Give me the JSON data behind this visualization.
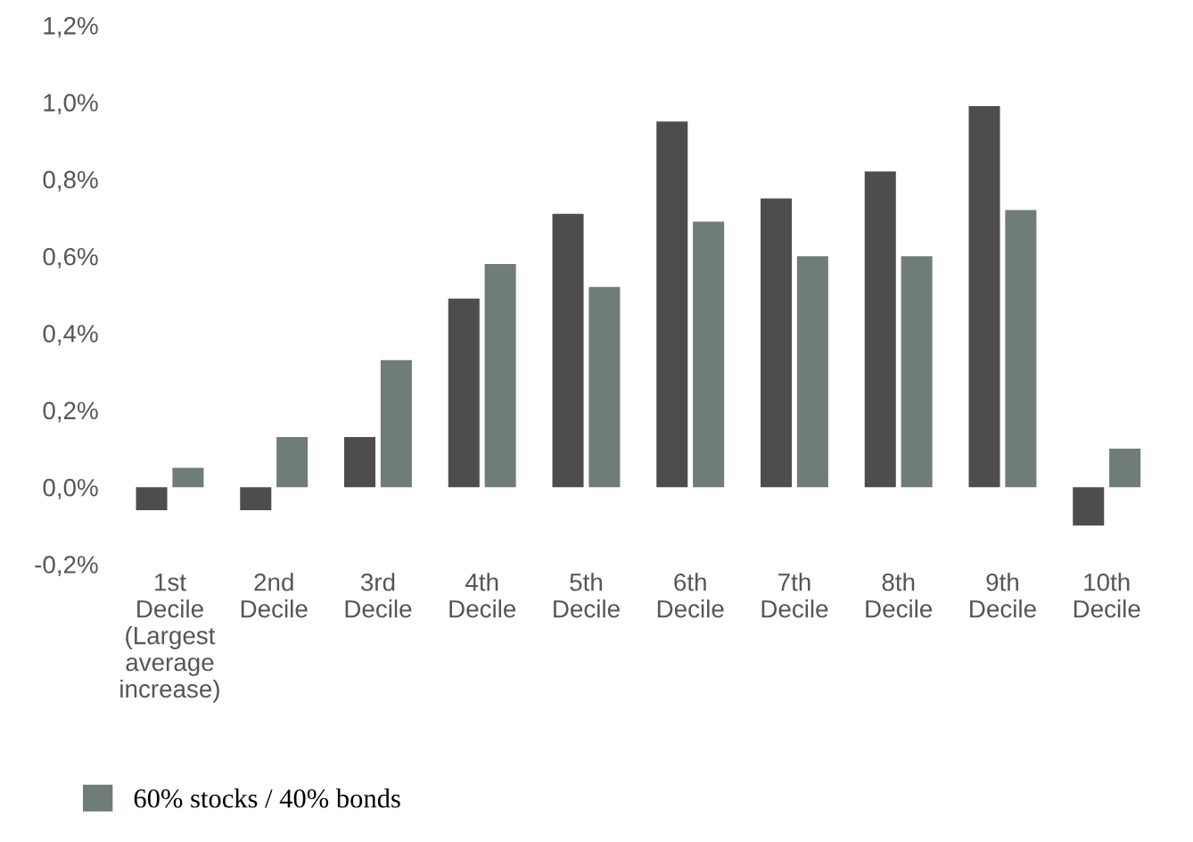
{
  "chart_data": {
    "type": "bar",
    "categories": [
      "1st\nDecile\n(Largest\naverage\nincrease)",
      "2nd\nDecile",
      "3rd\nDecile",
      "4th\nDecile",
      "5th\nDecile",
      "6th\nDecile",
      "7th\nDecile",
      "8th\nDecile",
      "9th\nDecile",
      "10th\nDecile"
    ],
    "series": [
      {
        "color": "#4d4d4d",
        "values": [
          -0.06,
          -0.06,
          0.13,
          0.49,
          0.71,
          0.95,
          0.75,
          0.82,
          0.99,
          -0.1
        ]
      },
      {
        "name": "60% stocks / 40% bonds",
        "color": "#6f7c78",
        "values": [
          0.05,
          0.13,
          0.33,
          0.58,
          0.52,
          0.69,
          0.6,
          0.6,
          0.72,
          0.1
        ]
      }
    ],
    "ylim": [
      -0.2,
      1.2
    ],
    "yticks": [
      {
        "value": -0.2,
        "label": "-0,2%"
      },
      {
        "value": 0.0,
        "label": "0,0%"
      },
      {
        "value": 0.2,
        "label": "0,2%"
      },
      {
        "value": 0.4,
        "label": "0,4%"
      },
      {
        "value": 0.6,
        "label": "0,6%"
      },
      {
        "value": 0.8,
        "label": "0,8%"
      },
      {
        "value": 1.0,
        "label": "1,0%"
      },
      {
        "value": 1.2,
        "label": "1,2%"
      }
    ],
    "grid": false,
    "legend": "bottom left"
  }
}
